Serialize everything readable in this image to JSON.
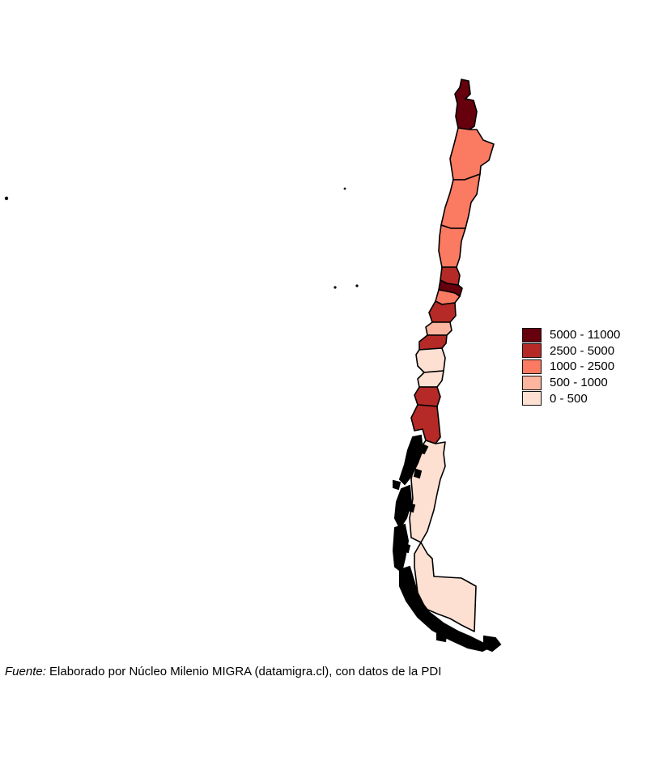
{
  "legend": {
    "items": [
      {
        "label": "5000 - 11000",
        "color": "#67000d"
      },
      {
        "label": "2500 - 5000",
        "color": "#b52a26"
      },
      {
        "label": "1000 - 2500",
        "color": "#fb7a62"
      },
      {
        "label": "500 - 1000",
        "color": "#fcb59e"
      },
      {
        "label": "0 - 500",
        "color": "#fee0d2"
      }
    ]
  },
  "caption": {
    "lead": "Fuente:",
    "text": " Elaborado por Núcleo Milenio MIGRA (datamigra.cl), con datos de la PDI"
  }
}
